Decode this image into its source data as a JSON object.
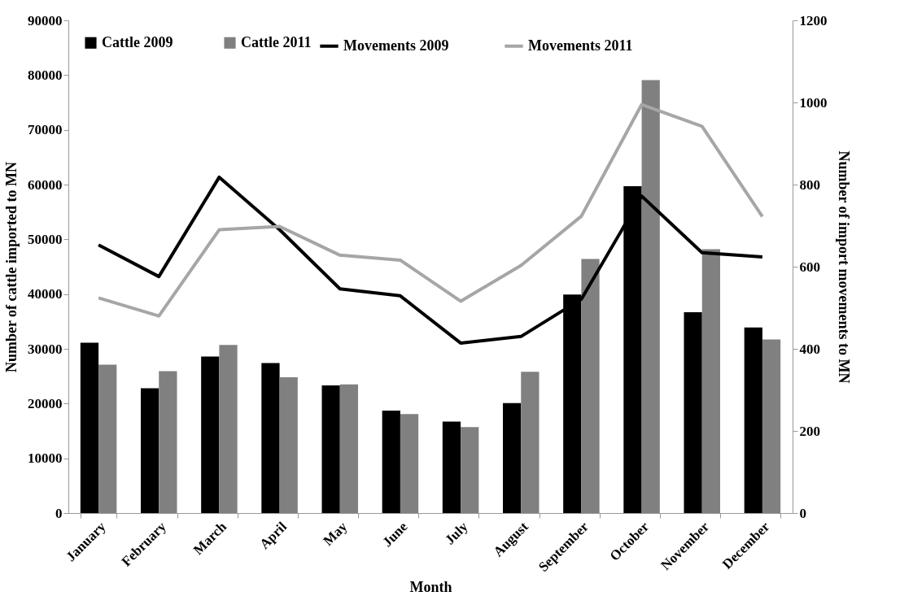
{
  "chart_data": {
    "type": "bar",
    "xlabel": "Month",
    "ylabel": "Number of cattle imported to MN",
    "y2label": "Number of import movements to MN",
    "categories": [
      "January",
      "February",
      "March",
      "April",
      "May",
      "June",
      "July",
      "August",
      "September",
      "October",
      "November",
      "December"
    ],
    "series": [
      {
        "name": "Cattle 2009",
        "color": "#000000",
        "values": [
          31100,
          22800,
          28600,
          27400,
          23300,
          18700,
          16700,
          20100,
          39900,
          59700,
          36700,
          33900
        ]
      },
      {
        "name": "Cattle 2011",
        "color": "#808080",
        "values": [
          27100,
          25900,
          30700,
          24800,
          23500,
          18100,
          15700,
          25800,
          46400,
          79100,
          48200,
          31700
        ]
      },
      {
        "name": "Movements 2009",
        "type": "line",
        "axis": "y2",
        "color": "#000000",
        "values": [
          653,
          576,
          818,
          690,
          546,
          529,
          414,
          430,
          521,
          772,
          634,
          624
        ]
      },
      {
        "name": "Movements 2011",
        "type": "line",
        "axis": "y2",
        "color": "#a6a6a6",
        "values": [
          524,
          480,
          690,
          698,
          628,
          616,
          516,
          603,
          723,
          995,
          942,
          722
        ]
      }
    ],
    "ylim": [
      0,
      90000
    ],
    "yticks": [
      0,
      10000,
      20000,
      30000,
      40000,
      50000,
      60000,
      70000,
      80000,
      90000
    ],
    "y2lim": [
      0,
      1200
    ],
    "y2ticks": [
      0,
      200,
      400,
      600,
      800,
      1000,
      1200
    ],
    "grid": false,
    "legend": "top left"
  }
}
